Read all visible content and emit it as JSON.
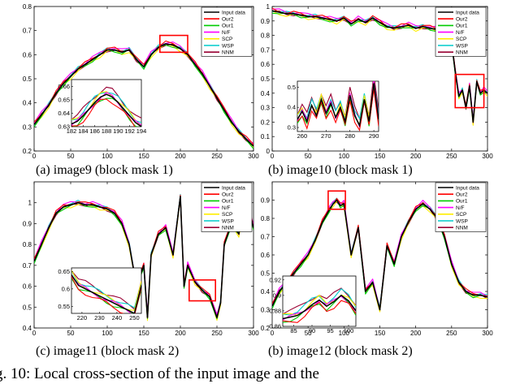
{
  "figure_caption": "g. 10: Local cross-section of the input image and the",
  "chart_data": [
    {
      "type": "line",
      "caption": "(a) image9 (block mask 1)",
      "xlim": [
        0,
        300
      ],
      "ylim": [
        0.2,
        0.8
      ],
      "xticks": [
        0,
        50,
        100,
        150,
        200,
        250,
        300
      ],
      "yticks": [
        0.2,
        0.3,
        0.4,
        0.5,
        0.6,
        0.7,
        0.8
      ],
      "ytick_labels": [
        "0.2",
        "0.3",
        "0.4",
        "0.5",
        "0.6",
        "0.7",
        "0.8"
      ],
      "legend": [
        "Input data",
        "Our2",
        "Our1",
        "N/F",
        "SCP",
        "WSP",
        "NNM"
      ],
      "colors": [
        "#000000",
        "#ff0000",
        "#00cc00",
        "#ff00ff",
        "#ffee00",
        "#00cccc",
        "#990033"
      ],
      "highlight": {
        "x": [
          172,
          210
        ],
        "y": [
          0.61,
          0.68
        ]
      },
      "series_x": [
        0,
        10,
        20,
        30,
        40,
        50,
        60,
        70,
        80,
        90,
        100,
        110,
        120,
        130,
        140,
        150,
        160,
        170,
        180,
        190,
        200,
        210,
        220,
        230,
        240,
        250,
        260,
        270,
        280,
        290,
        300
      ],
      "series_y": [
        0.31,
        0.35,
        0.39,
        0.44,
        0.48,
        0.51,
        0.54,
        0.56,
        0.58,
        0.6,
        0.62,
        0.62,
        0.61,
        0.62,
        0.58,
        0.55,
        0.6,
        0.63,
        0.645,
        0.64,
        0.625,
        0.6,
        0.56,
        0.52,
        0.47,
        0.42,
        0.37,
        0.32,
        0.28,
        0.25,
        0.22
      ],
      "inset": {
        "xlim": [
          182,
          194
        ],
        "ylim": [
          0.63,
          0.665
        ],
        "xticks": [
          182,
          184,
          186,
          188,
          190,
          192,
          194
        ],
        "yticks": [
          0.63,
          0.64,
          0.65,
          0.66
        ],
        "ytick_labels": [
          "0.63",
          "0.64",
          "0.65",
          "0.66"
        ],
        "x": [
          182,
          183,
          184,
          185,
          186,
          187,
          188,
          189,
          190,
          191,
          192,
          193,
          194
        ],
        "y": [
          0.632,
          0.634,
          0.638,
          0.643,
          0.648,
          0.652,
          0.654,
          0.652,
          0.648,
          0.643,
          0.638,
          0.633,
          0.63
        ]
      }
    },
    {
      "type": "line",
      "caption": "(b) image10 (block mask 1)",
      "xlim": [
        0,
        300
      ],
      "ylim": [
        0,
        1
      ],
      "xticks": [
        0,
        50,
        100,
        150,
        200,
        250,
        300
      ],
      "yticks": [
        0,
        0.1,
        0.2,
        0.3,
        0.4,
        0.5,
        0.6,
        0.7,
        0.8,
        0.9,
        1
      ],
      "ytick_labels": [
        "0",
        "0.1",
        "0.2",
        "0.3",
        "0.4",
        "0.5",
        "0.6",
        "0.7",
        "0.8",
        "0.9",
        "1"
      ],
      "legend": [
        "Input data",
        "Our2",
        "Our1",
        "N/F",
        "SCP",
        "WSP",
        "NNM"
      ],
      "colors": [
        "#000000",
        "#ff0000",
        "#00cc00",
        "#ff00ff",
        "#ffee00",
        "#00cccc",
        "#990033"
      ],
      "highlight": {
        "x": [
          255,
          295
        ],
        "y": [
          0.3,
          0.53
        ]
      },
      "series_x": [
        0,
        10,
        20,
        30,
        40,
        50,
        60,
        70,
        80,
        90,
        100,
        110,
        120,
        130,
        140,
        150,
        160,
        170,
        180,
        190,
        200,
        210,
        220,
        230,
        240,
        250,
        255,
        260,
        265,
        270,
        275,
        280,
        285,
        290,
        295,
        300
      ],
      "series_y": [
        0.97,
        0.96,
        0.95,
        0.95,
        0.94,
        0.93,
        0.93,
        0.92,
        0.91,
        0.9,
        0.92,
        0.88,
        0.91,
        0.89,
        0.92,
        0.89,
        0.86,
        0.85,
        0.86,
        0.87,
        0.85,
        0.86,
        0.85,
        0.84,
        0.8,
        0.75,
        0.55,
        0.38,
        0.42,
        0.3,
        0.45,
        0.2,
        0.48,
        0.4,
        0.42,
        0.4
      ],
      "inset": {
        "xlim": [
          258,
          292
        ],
        "ylim": [
          0.28,
          0.53
        ],
        "xticks": [
          260,
          270,
          280,
          290
        ],
        "yticks": [
          0.3,
          0.4,
          0.5
        ],
        "ytick_labels": [
          "0.3",
          "0.4",
          "0.5"
        ],
        "x": [
          258,
          260,
          262,
          264,
          266,
          268,
          270,
          272,
          274,
          276,
          278,
          280,
          282,
          284,
          286,
          288,
          290,
          292
        ],
        "y": [
          0.34,
          0.38,
          0.33,
          0.41,
          0.36,
          0.44,
          0.37,
          0.42,
          0.35,
          0.4,
          0.33,
          0.46,
          0.36,
          0.31,
          0.44,
          0.33,
          0.52,
          0.34
        ]
      }
    },
    {
      "type": "line",
      "caption": "(c) image11 (block mask 2)",
      "xlim": [
        0,
        300
      ],
      "ylim": [
        0.4,
        1.1
      ],
      "xticks": [
        0,
        50,
        100,
        150,
        200,
        250,
        300
      ],
      "yticks": [
        0.4,
        0.5,
        0.6,
        0.7,
        0.8,
        0.9,
        1
      ],
      "ytick_labels": [
        "0.4",
        "0.5",
        "0.6",
        "0.7",
        "0.8",
        "0.9",
        "1"
      ],
      "legend": [
        "Input data",
        "Our2",
        "Our1",
        "N/F",
        "SCP",
        "WSP",
        "NNM"
      ],
      "colors": [
        "#000000",
        "#ff0000",
        "#00cc00",
        "#ff00ff",
        "#ffee00",
        "#00cccc",
        "#990033"
      ],
      "highlight": {
        "x": [
          212,
          248
        ],
        "y": [
          0.53,
          0.63
        ]
      },
      "series_x": [
        0,
        10,
        20,
        30,
        40,
        50,
        60,
        70,
        80,
        90,
        100,
        110,
        120,
        130,
        140,
        150,
        155,
        160,
        170,
        180,
        190,
        200,
        205,
        210,
        220,
        230,
        240,
        250,
        255,
        260,
        270,
        280,
        290,
        295,
        300
      ],
      "series_y": [
        0.72,
        0.8,
        0.88,
        0.95,
        0.98,
        0.99,
        1.0,
        0.99,
        0.99,
        0.98,
        0.97,
        0.95,
        0.9,
        0.8,
        0.6,
        0.7,
        0.45,
        0.75,
        0.85,
        0.88,
        0.75,
        1.03,
        0.6,
        0.7,
        0.62,
        0.58,
        0.55,
        0.45,
        0.52,
        0.8,
        0.9,
        0.85,
        1.08,
        0.95,
        0.88
      ],
      "inset": {
        "xlim": [
          214,
          254
        ],
        "ylim": [
          0.53,
          0.66
        ],
        "xticks": [
          220,
          230,
          240,
          250
        ],
        "yticks": [
          0.55,
          0.6,
          0.65
        ],
        "ytick_labels": [
          "0.55",
          "0.6",
          "0.65"
        ],
        "x": [
          214,
          218,
          222,
          226,
          230,
          234,
          238,
          242,
          246,
          250,
          254
        ],
        "y": [
          0.64,
          0.61,
          0.6,
          0.59,
          0.58,
          0.57,
          0.56,
          0.55,
          0.54,
          0.53,
          0.61
        ]
      }
    },
    {
      "type": "line",
      "caption": "(b) image12 (block mask 2)",
      "xlim": [
        0,
        300
      ],
      "ylim": [
        0.2,
        1.0
      ],
      "xticks": [
        0,
        50,
        100,
        150,
        200,
        250,
        300
      ],
      "yticks": [
        0.2,
        0.3,
        0.4,
        0.5,
        0.6,
        0.7,
        0.8,
        0.9
      ],
      "ytick_labels": [
        "0.2",
        "0.3",
        "0.4",
        "0.5",
        "0.6",
        "0.7",
        "0.8",
        "0.9"
      ],
      "legend": [
        "Input data",
        "Our2",
        "Our1",
        "N/F",
        "SCP",
        "WSP",
        "NNM"
      ],
      "colors": [
        "#000000",
        "#ff0000",
        "#00cc00",
        "#ff00ff",
        "#ffee00",
        "#00cccc",
        "#990033"
      ],
      "highlight": {
        "x": [
          78,
          102
        ],
        "y": [
          0.85,
          0.95
        ]
      },
      "series_x": [
        0,
        10,
        20,
        30,
        40,
        50,
        60,
        70,
        80,
        85,
        90,
        95,
        100,
        110,
        120,
        130,
        140,
        150,
        160,
        170,
        180,
        190,
        200,
        210,
        220,
        230,
        240,
        250,
        260,
        270,
        280,
        290,
        300
      ],
      "series_y": [
        0.32,
        0.4,
        0.45,
        0.5,
        0.55,
        0.6,
        0.68,
        0.78,
        0.85,
        0.88,
        0.9,
        0.87,
        0.88,
        0.6,
        0.75,
        0.4,
        0.45,
        0.3,
        0.65,
        0.55,
        0.7,
        0.78,
        0.85,
        0.88,
        0.85,
        0.8,
        0.7,
        0.55,
        0.45,
        0.4,
        0.38,
        0.38,
        0.37
      ],
      "inset": {
        "xlim": [
          82,
          102
        ],
        "ylim": [
          0.86,
          0.925
        ],
        "xticks": [
          85,
          90,
          95,
          100
        ],
        "yticks": [
          0.86,
          0.88,
          0.9,
          0.92
        ],
        "ytick_labels": [
          "0.86",
          "0.88",
          "0.9",
          "0.92"
        ],
        "x": [
          82,
          84,
          86,
          88,
          90,
          92,
          94,
          96,
          98,
          100,
          102
        ],
        "y": [
          0.87,
          0.872,
          0.874,
          0.88,
          0.888,
          0.894,
          0.886,
          0.892,
          0.9,
          0.893,
          0.88
        ]
      }
    }
  ]
}
